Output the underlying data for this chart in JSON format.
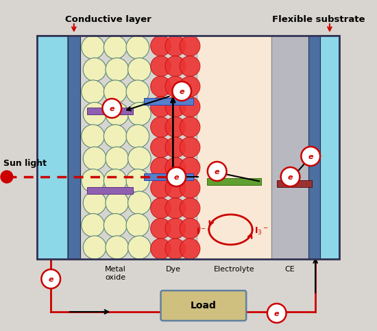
{
  "bg_color": "#d8d5d0",
  "fig_bg": "#d8d5d0",
  "title_conductive": "Conductive layer",
  "title_flexible": "Flexible substrate",
  "label_sunlight": "Sun light",
  "label_metal_oxide": "Metal\noxide",
  "label_dye": "Dye",
  "label_electrolyte": "Electrolyte",
  "label_ce": "CE",
  "label_load": "Load",
  "cyan_layer_color": "#8dd8e8",
  "dark_blue_layer_color": "#4a6fa0",
  "tio2_fill": "#f0f0b8",
  "tio2_border": "#5a8878",
  "dye_fill": "#ee3333",
  "dye_border": "#bb1111",
  "electrolyte_fill": "#f8e8d5",
  "ce_fill": "#b8b8c0",
  "purple_bar_color": "#9060b0",
  "blue_bar_color": "#5580cc",
  "green_bar_color": "#60a030",
  "dark_red_bar_color": "#993333",
  "electron_circle_color": "#cc0000",
  "sunlight_color": "#cc0000",
  "load_fill": "#cfc080",
  "load_edge": "#6080a0",
  "redox_color": "#cc0000",
  "circuit_color": "#cc0000",
  "black": "#000000"
}
